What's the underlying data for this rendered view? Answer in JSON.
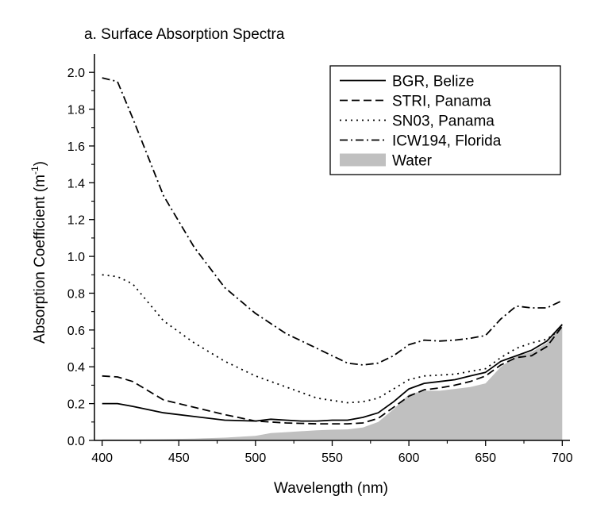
{
  "chart_data": {
    "type": "line",
    "title": "a.  Surface Absorption Spectra",
    "xlabel": "Wavelength (nm)",
    "ylabel_main": "Absorption Coefficient (m",
    "ylabel_sup": "-1",
    "ylabel_close": ")",
    "xlim": [
      395,
      705
    ],
    "ylim": [
      0,
      2.1
    ],
    "x_ticks": [
      400,
      450,
      500,
      550,
      600,
      650,
      700
    ],
    "x_tick_labels": [
      "400",
      "450",
      "500",
      "550",
      "600",
      "650",
      "700"
    ],
    "y_ticks": [
      0,
      0.2,
      0.4,
      0.6,
      0.8,
      1.0,
      1.2,
      1.4,
      1.6,
      1.8,
      2.0
    ],
    "y_tick_labels": [
      "0.0",
      "0.2",
      "0.4",
      "0.6",
      "0.8",
      "1.0",
      "1.2",
      "1.4",
      "1.6",
      "1.8",
      "2.0"
    ],
    "grid": false,
    "legend_position": "top-right",
    "series": [
      {
        "name": "BGR, Belize",
        "style": "solid",
        "x": [
          400,
          410,
          420,
          440,
          460,
          480,
          500,
          510,
          520,
          530,
          540,
          550,
          560,
          570,
          580,
          590,
          600,
          610,
          620,
          630,
          640,
          650,
          660,
          670,
          680,
          690,
          700
        ],
        "y": [
          0.2,
          0.2,
          0.185,
          0.15,
          0.13,
          0.11,
          0.105,
          0.115,
          0.11,
          0.105,
          0.105,
          0.11,
          0.11,
          0.125,
          0.15,
          0.21,
          0.28,
          0.31,
          0.32,
          0.33,
          0.35,
          0.37,
          0.43,
          0.46,
          0.49,
          0.54,
          0.63
        ]
      },
      {
        "name": "STRI, Panama",
        "style": "dashed",
        "x": [
          400,
          410,
          420,
          440,
          460,
          480,
          500,
          520,
          540,
          560,
          570,
          580,
          590,
          600,
          610,
          620,
          630,
          640,
          650,
          660,
          670,
          680,
          690,
          700
        ],
        "y": [
          0.35,
          0.345,
          0.32,
          0.22,
          0.18,
          0.14,
          0.105,
          0.095,
          0.09,
          0.09,
          0.095,
          0.12,
          0.18,
          0.24,
          0.275,
          0.285,
          0.3,
          0.32,
          0.35,
          0.41,
          0.45,
          0.46,
          0.51,
          0.62
        ]
      },
      {
        "name": "SN03, Panama",
        "style": "dotted",
        "x": [
          400,
          410,
          420,
          440,
          460,
          480,
          500,
          520,
          540,
          560,
          570,
          580,
          590,
          600,
          610,
          620,
          630,
          640,
          650,
          660,
          670,
          680,
          690,
          700
        ],
        "y": [
          0.9,
          0.89,
          0.85,
          0.65,
          0.53,
          0.43,
          0.35,
          0.29,
          0.23,
          0.205,
          0.21,
          0.23,
          0.28,
          0.33,
          0.35,
          0.355,
          0.36,
          0.375,
          0.39,
          0.45,
          0.5,
          0.53,
          0.55,
          0.61
        ]
      },
      {
        "name": "ICW194, Florida",
        "style": "dashdot",
        "x": [
          400,
          410,
          420,
          440,
          460,
          480,
          500,
          520,
          540,
          560,
          570,
          580,
          590,
          600,
          610,
          620,
          630,
          640,
          650,
          660,
          670,
          680,
          690,
          700
        ],
        "y": [
          1.97,
          1.95,
          1.75,
          1.33,
          1.05,
          0.83,
          0.69,
          0.58,
          0.5,
          0.42,
          0.41,
          0.42,
          0.46,
          0.52,
          0.545,
          0.54,
          0.545,
          0.555,
          0.57,
          0.66,
          0.73,
          0.72,
          0.72,
          0.76
        ]
      },
      {
        "name": "Water",
        "style": "area",
        "x": [
          400,
          420,
          440,
          460,
          480,
          500,
          510,
          520,
          530,
          540,
          550,
          560,
          570,
          575,
          580,
          590,
          600,
          610,
          620,
          630,
          640,
          650,
          660,
          670,
          680,
          690,
          700
        ],
        "y": [
          0.005,
          0.005,
          0.007,
          0.01,
          0.015,
          0.025,
          0.04,
          0.045,
          0.05,
          0.055,
          0.058,
          0.06,
          0.07,
          0.085,
          0.1,
          0.17,
          0.25,
          0.27,
          0.27,
          0.28,
          0.29,
          0.31,
          0.4,
          0.46,
          0.48,
          0.53,
          0.63
        ]
      }
    ]
  }
}
